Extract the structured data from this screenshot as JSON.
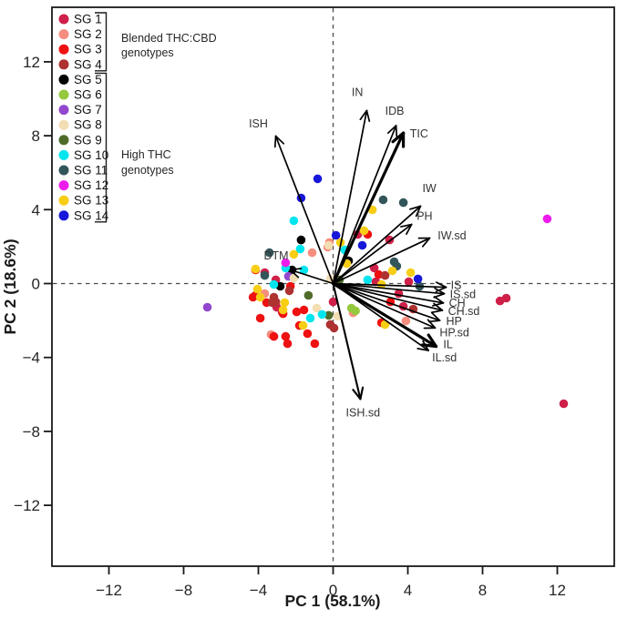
{
  "chart_data": {
    "type": "scatter",
    "title": "",
    "xlabel": "PC 1 (58.1%)",
    "ylabel": "PC 2 (18.6%)",
    "xlim": [
      -15,
      15
    ],
    "ylim": [
      -15,
      15
    ],
    "xticks": [
      -12,
      -8,
      -4,
      0,
      4,
      8,
      12
    ],
    "yticks": [
      -12,
      -8,
      -4,
      0,
      4,
      8,
      12
    ],
    "grid": "off",
    "zero_lines": "dashed",
    "legend_position": "top-left",
    "groups": [
      {
        "name": "SG 1",
        "color": "#CE2049",
        "points": [
          [
            1.32,
            2.66
          ],
          [
            -3.66,
            0.59
          ],
          [
            -3.07,
            0.2
          ],
          [
            2.2,
            0.84
          ],
          [
            2.29,
            0.1
          ],
          [
            -2.73,
            -1.53
          ],
          [
            -3.02,
            -1.28
          ],
          [
            3.51,
            -0.54
          ],
          [
            3.76,
            -1.23
          ],
          [
            4.05,
            0.1
          ],
          [
            0.0,
            -0.99
          ],
          [
            3.02,
            2.36
          ],
          [
            8.93,
            -0.94
          ],
          [
            9.27,
            -0.79
          ],
          [
            12.34,
            -6.5
          ]
        ]
      },
      {
        "name": "SG 2",
        "color": "#F58E7E",
        "points": [
          [
            -1.12,
            1.67
          ],
          [
            -0.2,
            2.22
          ],
          [
            -0.29,
            1.97
          ],
          [
            -3.66,
            -0.54
          ],
          [
            -3.32,
            -2.76
          ],
          [
            1.07,
            -1.58
          ],
          [
            3.9,
            -2.02
          ]
        ]
      },
      {
        "name": "SG 3",
        "color": "#EE1111",
        "points": [
          [
            1.85,
            2.66
          ],
          [
            -4.15,
            0.74
          ],
          [
            -2.29,
            -0.15
          ],
          [
            -4.15,
            -0.64
          ],
          [
            -4.29,
            -0.74
          ],
          [
            -3.56,
            -1.03
          ],
          [
            -1.95,
            -1.53
          ],
          [
            -3.9,
            -1.87
          ],
          [
            -2.68,
            -1.63
          ],
          [
            -3.17,
            -2.86
          ],
          [
            -2.54,
            -2.86
          ],
          [
            -2.44,
            -3.25
          ],
          [
            -1.8,
            -2.27
          ],
          [
            -1.56,
            -1.43
          ],
          [
            -1.37,
            -2.71
          ],
          [
            -0.98,
            -3.25
          ],
          [
            2.59,
            -2.12
          ],
          [
            2.44,
            0.49
          ],
          [
            3.07,
            -0.99
          ]
        ]
      },
      {
        "name": "SG 4",
        "color": "#AE3230",
        "points": [
          [
            -2.34,
            -0.39
          ],
          [
            -3.07,
            -0.99
          ],
          [
            -3.27,
            -1.03
          ],
          [
            -3.17,
            -0.74
          ],
          [
            -0.15,
            -2.22
          ],
          [
            0.05,
            -2.41
          ],
          [
            2.78,
            0.44
          ],
          [
            4.29,
            -1.38
          ]
        ]
      },
      {
        "name": "SG 5",
        "color": "#000000",
        "points": [
          [
            -1.71,
            2.36
          ],
          [
            -2.83,
            -0.15
          ],
          [
            -2.2,
            0.74
          ],
          [
            0.83,
            1.23
          ]
        ]
      },
      {
        "name": "SG 6",
        "color": "#95C93D",
        "points": [
          [
            0.98,
            -1.33
          ],
          [
            1.2,
            -1.48
          ]
        ]
      },
      {
        "name": "SG 7",
        "color": "#9147CE",
        "points": [
          [
            -6.73,
            -1.28
          ],
          [
            -2.39,
            0.39
          ]
        ]
      },
      {
        "name": "SG 8",
        "color": "#F3DDB3",
        "points": [
          [
            -0.24,
            2.07
          ],
          [
            -2.1,
            0.3
          ],
          [
            -0.88,
            -1.33
          ],
          [
            0.24,
            -1.77
          ],
          [
            -0.15,
            0.25
          ]
        ]
      },
      {
        "name": "SG 9",
        "color": "#4F6B2A",
        "points": [
          [
            0.34,
            0.2
          ],
          [
            -1.32,
            -0.64
          ],
          [
            -0.24,
            -1.72
          ]
        ]
      },
      {
        "name": "SG 10",
        "color": "#00E5EE",
        "points": [
          [
            -2.54,
            0.84
          ],
          [
            -1.56,
            0.74
          ],
          [
            -1.76,
            1.87
          ],
          [
            -2.1,
            3.4
          ],
          [
            -3.17,
            -0.05
          ],
          [
            0.63,
            1.82
          ],
          [
            1.85,
            0.2
          ],
          [
            -1.22,
            -1.87
          ],
          [
            -0.59,
            -1.67
          ]
        ]
      },
      {
        "name": "SG 11",
        "color": "#32555A",
        "points": [
          [
            -3.41,
            1.67
          ],
          [
            -3.66,
            0.44
          ],
          [
            2.68,
            4.53
          ],
          [
            3.76,
            4.38
          ],
          [
            3.27,
            1.18
          ],
          [
            3.41,
            0.94
          ],
          [
            4.63,
            -0.15
          ]
        ]
      },
      {
        "name": "SG 12",
        "color": "#ED1CEB",
        "points": [
          [
            11.46,
            3.5
          ],
          [
            -2.54,
            1.13
          ]
        ]
      },
      {
        "name": "SG 13",
        "color": "#F7CE15",
        "points": [
          [
            -2.1,
            1.58
          ],
          [
            -4.15,
            0.79
          ],
          [
            -4.05,
            -0.3
          ],
          [
            -3.9,
            -0.74
          ],
          [
            -2.59,
            -1.03
          ],
          [
            -2.68,
            -1.43
          ],
          [
            -1.61,
            -2.27
          ],
          [
            0.39,
            2.22
          ],
          [
            1.66,
            2.86
          ],
          [
            2.1,
            3.99
          ],
          [
            3.17,
            0.69
          ],
          [
            2.59,
            -0.05
          ],
          [
            4.15,
            0.59
          ],
          [
            2.78,
            -2.22
          ],
          [
            0.73,
            1.08
          ]
        ]
      },
      {
        "name": "SG 14",
        "color": "#1717D9",
        "points": [
          [
            -0.83,
            5.67
          ],
          [
            -1.71,
            4.63
          ],
          [
            0.15,
            2.61
          ],
          [
            1.56,
            2.07
          ],
          [
            4.54,
            0.25
          ]
        ]
      }
    ],
    "loadings": [
      {
        "label": "ISH",
        "tip": [
          -3.07,
          7.98
        ],
        "label_pos": [
          -4.0,
          8.45
        ],
        "anchor": "middle",
        "weight": "normal"
      },
      {
        "label": "IN",
        "tip": [
          1.8,
          9.36
        ],
        "label_pos": [
          1.3,
          10.15
        ],
        "anchor": "middle",
        "weight": "normal"
      },
      {
        "label": "IDB",
        "tip": [
          3.37,
          8.55
        ],
        "label_pos": [
          3.3,
          9.15
        ],
        "anchor": "middle",
        "weight": "normal"
      },
      {
        "label": "TIC",
        "tip": [
          3.76,
          8.15
        ],
        "label_pos": [
          4.6,
          7.9
        ],
        "anchor": "middle",
        "weight": "bold"
      },
      {
        "label": "IW",
        "tip": [
          4.68,
          4.19
        ],
        "label_pos": [
          5.15,
          4.95
        ],
        "anchor": "middle",
        "weight": "normal"
      },
      {
        "label": "PH",
        "tip": [
          4.2,
          3.2
        ],
        "label_pos": [
          4.9,
          3.45
        ],
        "anchor": "middle",
        "weight": "normal"
      },
      {
        "label": "IW.sd",
        "tip": [
          5.17,
          2.46
        ],
        "label_pos": [
          5.6,
          2.4
        ],
        "anchor": "start",
        "weight": "normal"
      },
      {
        "label": "DTM",
        "tip": [
          -2.29,
          0.74
        ],
        "label_pos": [
          -3.05,
          1.3
        ],
        "anchor": "middle",
        "weight": "normal"
      },
      {
        "label": "IS",
        "tip": [
          6.05,
          -0.2
        ],
        "label_pos": [
          6.3,
          -0.3
        ],
        "anchor": "start",
        "weight": "normal"
      },
      {
        "label": "IS.sd",
        "tip": [
          5.95,
          -0.55
        ],
        "label_pos": [
          6.25,
          -0.8
        ],
        "anchor": "start",
        "weight": "normal"
      },
      {
        "label": "CH",
        "tip": [
          5.9,
          -1.05
        ],
        "label_pos": [
          6.2,
          -1.25
        ],
        "anchor": "start",
        "weight": "normal"
      },
      {
        "label": "CH.sd",
        "tip": [
          5.85,
          -1.45
        ],
        "label_pos": [
          6.15,
          -1.7
        ],
        "anchor": "start",
        "weight": "normal"
      },
      {
        "label": "HP",
        "tip": [
          5.71,
          -2.0
        ],
        "label_pos": [
          6.05,
          -2.25
        ],
        "anchor": "start",
        "weight": "normal"
      },
      {
        "label": "HP.sd",
        "tip": [
          5.46,
          -2.4
        ],
        "label_pos": [
          5.7,
          -2.85
        ],
        "anchor": "start",
        "weight": "normal"
      },
      {
        "label": "IL",
        "tip": [
          5.51,
          -3.4
        ],
        "label_pos": [
          5.9,
          -3.5
        ],
        "anchor": "start",
        "weight": "bold"
      },
      {
        "label": "IL.sd",
        "tip": [
          5.1,
          -3.62
        ],
        "label_pos": [
          5.3,
          -4.2
        ],
        "anchor": "start",
        "weight": "normal"
      },
      {
        "label": "ISH.sd",
        "tip": [
          1.46,
          -6.25
        ],
        "label_pos": [
          1.6,
          -7.2
        ],
        "anchor": "middle",
        "weight": "medium"
      }
    ],
    "legend": {
      "items": [
        {
          "label": "SG 1",
          "color": "#CE2049"
        },
        {
          "label": "SG 2",
          "color": "#F58E7E"
        },
        {
          "label": "SG 3",
          "color": "#EE1111"
        },
        {
          "label": "SG 4",
          "color": "#AE3230"
        },
        {
          "label": "SG 5",
          "color": "#000000"
        },
        {
          "label": "SG 6",
          "color": "#95C93D"
        },
        {
          "label": "SG 7",
          "color": "#9147CE"
        },
        {
          "label": "SG 8",
          "color": "#F3DDB3"
        },
        {
          "label": "SG 9",
          "color": "#4F6B2A"
        },
        {
          "label": "SG 10",
          "color": "#00E5EE"
        },
        {
          "label": "SG 11",
          "color": "#32555A"
        },
        {
          "label": "SG 12",
          "color": "#ED1CEB"
        },
        {
          "label": "SG 13",
          "color": "#F7CE15"
        },
        {
          "label": "SG 14",
          "color": "#1717D9"
        }
      ],
      "brackets": [
        {
          "label_lines": [
            "Blended THC:CBD",
            "genotypes"
          ],
          "first": 0,
          "last": 3
        },
        {
          "label_lines": [
            "High THC",
            "genotypes"
          ],
          "first": 4,
          "last": 13
        }
      ]
    },
    "colors": {
      "frame": "#1a1a1a",
      "zero_line": "#4a4a4a",
      "arrow": "#000000",
      "tick_text": "#262626",
      "arrow_text": "#333333"
    }
  }
}
